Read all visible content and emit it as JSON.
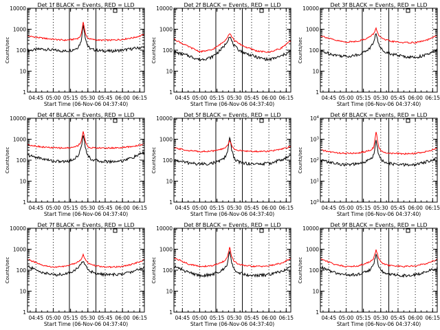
{
  "panels": [
    {
      "title": "Det 1f BLACK = Events, RED = LLD",
      "ylabel": "Counts/sec",
      "xlabel": "Start Time (06-Nov-06 04:37:40)",
      "x_tick_labels": [
        "04:45",
        "05:00",
        "05:15",
        "05:30",
        "05:45",
        "06:00",
        "06:15"
      ],
      "y_tick_labels": [
        "1",
        "10",
        "100",
        "1000",
        "10000"
      ]
    },
    {
      "title": "Det 2f BLACK = Events, RED = LLD",
      "ylabel": "Counts/sec",
      "xlabel": "Start Time (06-Nov-06 04:37:40)",
      "x_tick_labels": [
        "04:45",
        "05:00",
        "05:15",
        "05:30",
        "05:45",
        "06:00",
        "06:15"
      ],
      "y_tick_labels": [
        "1",
        "10",
        "100",
        "1000",
        "10000"
      ]
    },
    {
      "title": "Det 3f BLACK = Events, RED = LLD",
      "ylabel": "Counts/sec",
      "xlabel": "Start Time (06-Nov-06 04:37:40)",
      "x_tick_labels": [
        "04:45",
        "05:00",
        "05:15",
        "05:30",
        "05:45",
        "06:00",
        "06:15"
      ],
      "y_tick_labels": [
        "1",
        "10",
        "100",
        "1000",
        "10000"
      ]
    },
    {
      "title": "Det 4f BLACK = Events, RED = LLD",
      "ylabel": "Counts/sec",
      "xlabel": "Start Time (06-Nov-06 04:37:40)",
      "x_tick_labels": [
        "04:45",
        "05:00",
        "05:15",
        "05:30",
        "05:45",
        "06:00",
        "06:15"
      ],
      "y_tick_labels": [
        "1",
        "10",
        "100",
        "1000",
        "10000"
      ]
    },
    {
      "title": "Det 5f BLACK = Events, RED = LLD",
      "ylabel": "Counts/sec",
      "xlabel": "Start Time (06-Nov-06 04:37:40)",
      "x_tick_labels": [
        "04:45",
        "05:00",
        "05:15",
        "05:30",
        "05:45",
        "06:00",
        "06:15"
      ],
      "y_tick_labels": [
        "1",
        "10",
        "100",
        "1000",
        "10000"
      ]
    },
    {
      "title": "Det 6f BLACK = Events, RED = LLD",
      "ylabel": "Counts/sec",
      "xlabel": "Start Time (06-Nov-06 04:37:40)",
      "x_tick_labels": [
        "04:45",
        "05:00",
        "05:15",
        "05:30",
        "05:45",
        "06:00",
        "06:15"
      ],
      "y_tick_labels": [
        "10^0",
        "10^1",
        "10^2",
        "10^3",
        "10^4"
      ]
    },
    {
      "title": "Det 7f BLACK = Events, RED = LLD",
      "ylabel": "Counts/sec",
      "xlabel": "Start Time (06-Nov-06 04:37:40)",
      "x_tick_labels": [
        "04:45",
        "05:00",
        "05:15",
        "05:30",
        "05:45",
        "06:00",
        "06:15"
      ],
      "y_tick_labels": [
        "1",
        "10",
        "100",
        "1000",
        "10000"
      ]
    },
    {
      "title": "Det 8f BLACK = Events, RED = LLD",
      "ylabel": "Counts/sec",
      "xlabel": "Start Time (06-Nov-06 04:37:40)",
      "x_tick_labels": [
        "04:45",
        "05:00",
        "05:15",
        "05:30",
        "05:45",
        "06:00",
        "06:15"
      ],
      "y_tick_labels": [
        "1",
        "10",
        "100",
        "1000",
        "10000"
      ]
    },
    {
      "title": "Det 9f BLACK = Events, RED = LLD",
      "ylabel": "Counts/sec",
      "xlabel": "Start Time (06-Nov-06 04:37:40)",
      "x_tick_labels": [
        "04:45",
        "05:00",
        "05:15",
        "05:30",
        "05:45",
        "06:00",
        "06:15"
      ],
      "y_tick_labels": [
        "1",
        "10",
        "100",
        "1000",
        "10000"
      ]
    }
  ],
  "chart_data": [
    {
      "type": "line",
      "title": "Det 1f BLACK = Events, RED = LLD",
      "xlabel": "Start Time (06-Nov-06 04:37:40)",
      "ylabel": "Counts/sec",
      "y_scale": "log",
      "ylim": [
        1,
        10000
      ],
      "xlim": [
        "04:37:40",
        "06:19"
      ],
      "x": [
        "04:38",
        "04:50",
        "05:00",
        "05:10",
        "05:16",
        "05:21",
        "05:24",
        "05:26",
        "05:28",
        "05:30",
        "05:33",
        "05:40",
        "05:50",
        "06:00",
        "06:10",
        "06:19"
      ],
      "series": [
        {
          "color": "#000000",
          "values": [
            95,
            115,
            100,
            90,
            100,
            130,
            240,
            1700,
            350,
            150,
            110,
            95,
            90,
            100,
            120,
            140
          ]
        },
        {
          "color": "#ff0000",
          "values": [
            470,
            380,
            330,
            300,
            320,
            360,
            480,
            2300,
            550,
            380,
            330,
            300,
            300,
            330,
            400,
            550
          ]
        }
      ],
      "vertical_lines": {
        "solid": [
          "05:14",
          "05:37"
        ],
        "dotted": [
          "04:45",
          "05:00",
          "05:30",
          "05:45",
          "06:00",
          "06:15"
        ]
      }
    },
    {
      "type": "line",
      "title": "Det 2f BLACK = Events, RED = LLD",
      "xlabel": "Start Time (06-Nov-06 04:37:40)",
      "ylabel": "Counts/sec",
      "y_scale": "log",
      "ylim": [
        1,
        10000
      ],
      "xlim": [
        "04:37:40",
        "06:19"
      ],
      "x": [
        "04:38",
        "04:50",
        "05:00",
        "05:10",
        "05:16",
        "05:21",
        "05:24",
        "05:26",
        "05:28",
        "05:30",
        "05:33",
        "05:40",
        "05:50",
        "06:00",
        "06:10",
        "06:19"
      ],
      "series": [
        {
          "color": "#000000",
          "values": [
            80,
            55,
            35,
            45,
            80,
            150,
            280,
            480,
            250,
            160,
            110,
            70,
            45,
            35,
            50,
            90
          ]
        },
        {
          "color": "#ff0000",
          "values": [
            330,
            150,
            85,
            100,
            160,
            260,
            420,
            650,
            420,
            300,
            220,
            140,
            90,
            80,
            120,
            280
          ]
        }
      ],
      "vertical_lines": {
        "solid": [
          "05:14",
          "05:37"
        ],
        "dotted": [
          "04:45",
          "05:00",
          "05:30",
          "05:45",
          "06:00",
          "06:15"
        ]
      }
    },
    {
      "type": "line",
      "title": "Det 3f BLACK = Events, RED = LLD",
      "xlabel": "Start Time (06-Nov-06 04:37:40)",
      "ylabel": "Counts/sec",
      "y_scale": "log",
      "ylim": [
        1,
        10000
      ],
      "xlim": [
        "04:37:40",
        "06:19"
      ],
      "x": [
        "04:38",
        "04:50",
        "05:00",
        "05:10",
        "05:16",
        "05:21",
        "05:24",
        "05:26",
        "05:28",
        "05:30",
        "05:33",
        "05:40",
        "05:50",
        "06:00",
        "06:10",
        "06:19"
      ],
      "series": [
        {
          "color": "#000000",
          "values": [
            90,
            60,
            50,
            60,
            85,
            130,
            250,
            700,
            200,
            120,
            90,
            65,
            50,
            45,
            60,
            100
          ]
        },
        {
          "color": "#ff0000",
          "values": [
            500,
            300,
            240,
            270,
            330,
            450,
            620,
            1100,
            550,
            400,
            320,
            260,
            230,
            230,
            300,
            500
          ]
        }
      ],
      "vertical_lines": {
        "solid": [
          "05:14",
          "05:37"
        ],
        "dotted": [
          "04:45",
          "05:00",
          "05:30",
          "05:45",
          "06:00",
          "06:15"
        ]
      }
    },
    {
      "type": "line",
      "title": "Det 4f BLACK = Events, RED = LLD",
      "xlabel": "Start Time (06-Nov-06 04:37:40)",
      "ylabel": "Counts/sec",
      "y_scale": "log",
      "ylim": [
        1,
        10000
      ],
      "xlim": [
        "04:37:40",
        "06:19"
      ],
      "x": [
        "04:38",
        "04:50",
        "05:00",
        "05:10",
        "05:16",
        "05:21",
        "05:24",
        "05:26",
        "05:28",
        "05:30",
        "05:33",
        "05:40",
        "05:50",
        "06:00",
        "06:10",
        "06:19"
      ],
      "series": [
        {
          "color": "#000000",
          "values": [
            170,
            120,
            90,
            85,
            100,
            150,
            330,
            1800,
            380,
            160,
            110,
            90,
            85,
            95,
            140,
            240
          ]
        },
        {
          "color": "#ff0000",
          "values": [
            550,
            430,
            390,
            380,
            400,
            480,
            700,
            2500,
            700,
            430,
            390,
            380,
            380,
            400,
            460,
            600
          ]
        }
      ],
      "vertical_lines": {
        "solid": [
          "05:14",
          "05:37"
        ],
        "dotted": [
          "04:45",
          "05:00",
          "05:30",
          "05:45",
          "06:00",
          "06:15"
        ]
      }
    },
    {
      "type": "line",
      "title": "Det 5f BLACK = Events, RED = LLD",
      "xlabel": "Start Time (06-Nov-06 04:37:40)",
      "ylabel": "Counts/sec",
      "y_scale": "log",
      "ylim": [
        1,
        10000
      ],
      "xlim": [
        "04:37:40",
        "06:19"
      ],
      "x": [
        "04:38",
        "04:50",
        "05:00",
        "05:10",
        "05:16",
        "05:21",
        "05:24",
        "05:26",
        "05:28",
        "05:30",
        "05:33",
        "05:40",
        "05:50",
        "06:00",
        "06:10",
        "06:19"
      ],
      "series": [
        {
          "color": "#000000",
          "values": [
            100,
            75,
            65,
            70,
            85,
            120,
            220,
            1300,
            260,
            120,
            85,
            70,
            65,
            70,
            100,
            160
          ]
        },
        {
          "color": "#ff0000",
          "values": [
            380,
            290,
            260,
            270,
            300,
            360,
            480,
            900,
            480,
            340,
            290,
            270,
            260,
            270,
            320,
            450
          ]
        }
      ],
      "vertical_lines": {
        "solid": [
          "05:14",
          "05:37"
        ],
        "dotted": [
          "04:45",
          "05:00",
          "05:30",
          "05:45",
          "06:00",
          "06:15"
        ]
      }
    },
    {
      "type": "line",
      "title": "Det 6f BLACK = Events, RED = LLD",
      "xlabel": "Start Time (06-Nov-06 04:37:40)",
      "ylabel": "Counts/sec",
      "y_scale": "log",
      "ylim": [
        1,
        10000
      ],
      "xlim": [
        "04:37:40",
        "06:19"
      ],
      "x": [
        "04:38",
        "04:50",
        "05:00",
        "05:10",
        "05:16",
        "05:21",
        "05:24",
        "05:26",
        "05:28",
        "05:30",
        "05:33",
        "05:40",
        "05:50",
        "06:00",
        "06:10",
        "06:19"
      ],
      "series": [
        {
          "color": "#000000",
          "values": [
            100,
            70,
            60,
            65,
            80,
            110,
            180,
            1000,
            200,
            110,
            80,
            65,
            60,
            60,
            85,
            130
          ]
        },
        {
          "color": "#ff0000",
          "values": [
            300,
            230,
            210,
            220,
            250,
            300,
            420,
            2400,
            450,
            280,
            230,
            210,
            200,
            210,
            260,
            370
          ]
        }
      ],
      "vertical_lines": {
        "solid": [
          "05:14",
          "05:37"
        ],
        "dotted": [
          "04:45",
          "05:00",
          "05:30",
          "05:45",
          "06:00",
          "06:15"
        ]
      }
    },
    {
      "type": "line",
      "title": "Det 7f BLACK = Events, RED = LLD",
      "xlabel": "Start Time (06-Nov-06 04:37:40)",
      "ylabel": "Counts/sec",
      "y_scale": "log",
      "ylim": [
        1,
        10000
      ],
      "xlim": [
        "04:37:40",
        "06:19"
      ],
      "x": [
        "04:38",
        "04:50",
        "05:00",
        "05:10",
        "05:16",
        "05:21",
        "05:24",
        "05:26",
        "05:28",
        "05:30",
        "05:33",
        "05:40",
        "05:50",
        "06:00",
        "06:10",
        "06:19"
      ],
      "series": [
        {
          "color": "#000000",
          "values": [
            150,
            80,
            60,
            65,
            85,
            120,
            180,
            300,
            160,
            110,
            85,
            65,
            60,
            65,
            90,
            140
          ]
        },
        {
          "color": "#ff0000",
          "values": [
            330,
            170,
            140,
            150,
            190,
            240,
            330,
            550,
            300,
            220,
            180,
            150,
            140,
            150,
            200,
            320
          ]
        }
      ],
      "vertical_lines": {
        "solid": [
          "05:14",
          "05:37"
        ],
        "dotted": [
          "04:45",
          "05:00",
          "05:30",
          "05:45",
          "06:00",
          "06:15"
        ]
      }
    },
    {
      "type": "line",
      "title": "Det 8f BLACK = Events, RED = LLD",
      "xlabel": "Start Time (06-Nov-06 04:37:40)",
      "ylabel": "Counts/sec",
      "y_scale": "log",
      "ylim": [
        1,
        10000
      ],
      "xlim": [
        "04:37:40",
        "06:19"
      ],
      "x": [
        "04:38",
        "04:50",
        "05:00",
        "05:10",
        "05:16",
        "05:21",
        "05:24",
        "05:26",
        "05:28",
        "05:30",
        "05:33",
        "05:40",
        "05:50",
        "06:00",
        "06:10",
        "06:19"
      ],
      "series": [
        {
          "color": "#000000",
          "values": [
            150,
            80,
            55,
            60,
            80,
            120,
            200,
            900,
            200,
            110,
            80,
            60,
            55,
            60,
            85,
            140
          ]
        },
        {
          "color": "#ff0000",
          "values": [
            380,
            200,
            150,
            160,
            200,
            270,
            400,
            1200,
            400,
            260,
            200,
            160,
            150,
            160,
            210,
            350
          ]
        }
      ],
      "vertical_lines": {
        "solid": [
          "05:14",
          "05:37"
        ],
        "dotted": [
          "04:45",
          "05:00",
          "05:30",
          "05:45",
          "06:00",
          "06:15"
        ]
      }
    },
    {
      "type": "line",
      "title": "Det 9f BLACK = Events, RED = LLD",
      "xlabel": "Start Time (06-Nov-06 04:37:40)",
      "ylabel": "Counts/sec",
      "y_scale": "log",
      "ylim": [
        1,
        10000
      ],
      "xlim": [
        "04:37:40",
        "06:19"
      ],
      "x": [
        "04:38",
        "04:50",
        "05:00",
        "05:10",
        "05:16",
        "05:21",
        "05:24",
        "05:26",
        "05:28",
        "05:30",
        "05:33",
        "05:40",
        "05:50",
        "06:00",
        "06:10",
        "06:19"
      ],
      "series": [
        {
          "color": "#000000",
          "values": [
            140,
            75,
            60,
            60,
            80,
            110,
            180,
            650,
            180,
            100,
            75,
            60,
            55,
            60,
            85,
            130
          ]
        },
        {
          "color": "#ff0000",
          "values": [
            350,
            190,
            150,
            160,
            200,
            260,
            380,
            1000,
            380,
            250,
            190,
            160,
            150,
            160,
            210,
            330
          ]
        }
      ],
      "vertical_lines": {
        "solid": [
          "05:14",
          "05:37"
        ],
        "dotted": [
          "04:45",
          "05:00",
          "05:30",
          "05:45",
          "06:00",
          "06:15"
        ]
      }
    }
  ]
}
